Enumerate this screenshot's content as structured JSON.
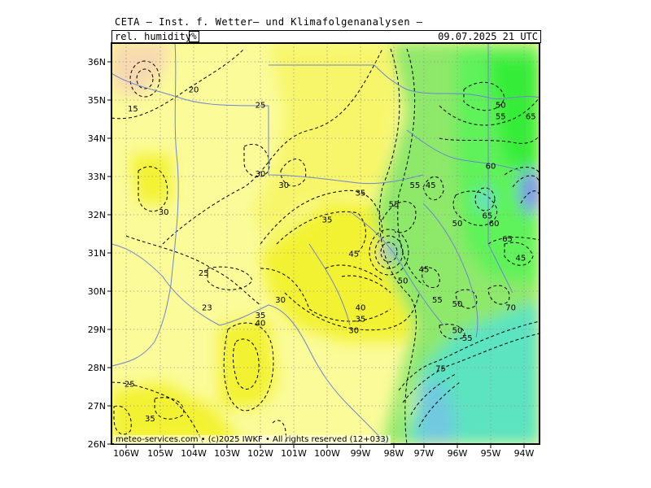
{
  "header": {
    "title": "CETA — Inst. f. Wetter— und Klimafolgenanalysen —",
    "parameter": "rel. humidity",
    "unit": "%",
    "timestamp": "09.07.2025  21 UTC"
  },
  "footer": {
    "copyright": "meteo-services.com • (c)2025 IWKF • All rights reserved (12+033)"
  },
  "axes": {
    "lat_labels": [
      "36N",
      "35N",
      "34N",
      "33N",
      "32N",
      "31N",
      "30N",
      "29N",
      "28N",
      "27N",
      "26N"
    ],
    "lon_labels": [
      "106W",
      "105W",
      "104W",
      "103W",
      "102W",
      "101W",
      "100W",
      "99W",
      "98W",
      "97W",
      "96W",
      "95W",
      "94W"
    ]
  },
  "colors": {
    "dry": "#f8d9b0",
    "low": "#fbfb9a",
    "mid": "#f3f230",
    "moist": "#8ee86a",
    "wet": "#34ed38",
    "very_wet": "#5ce3c0",
    "saturated": "#7a95ea",
    "rivers": "#6f86cf",
    "grid": "#9a9a9a"
  },
  "contour_labels": [
    {
      "text": "20",
      "lon": -104.0,
      "lat": 35.2
    },
    {
      "text": "15",
      "lon": -105.8,
      "lat": 34.7
    },
    {
      "text": "25",
      "lon": -102.0,
      "lat": 34.8
    },
    {
      "text": "30",
      "lon": -102.0,
      "lat": 33.0
    },
    {
      "text": "30",
      "lon": -101.3,
      "lat": 32.7
    },
    {
      "text": "30",
      "lon": -104.9,
      "lat": 32.0
    },
    {
      "text": "35",
      "lon": -99.0,
      "lat": 32.5
    },
    {
      "text": "35",
      "lon": -100.0,
      "lat": 31.8
    },
    {
      "text": "45",
      "lon": -99.2,
      "lat": 30.9
    },
    {
      "text": "25",
      "lon": -103.7,
      "lat": 30.4
    },
    {
      "text": "23",
      "lon": -103.6,
      "lat": 29.5
    },
    {
      "text": "30",
      "lon": -101.4,
      "lat": 29.7
    },
    {
      "text": "35",
      "lon": -102.0,
      "lat": 29.3
    },
    {
      "text": "40",
      "lon": -102.0,
      "lat": 29.1
    },
    {
      "text": "40",
      "lon": -99.0,
      "lat": 29.5
    },
    {
      "text": "35",
      "lon": -99.0,
      "lat": 29.2
    },
    {
      "text": "30",
      "lon": -99.2,
      "lat": 28.9
    },
    {
      "text": "25",
      "lon": -105.9,
      "lat": 27.5
    },
    {
      "text": "35",
      "lon": -105.3,
      "lat": 26.6
    },
    {
      "text": "50",
      "lon": -97.7,
      "lat": 30.2
    },
    {
      "text": "45",
      "lon": -97.0,
      "lat": 30.5
    },
    {
      "text": "55",
      "lon": -96.6,
      "lat": 29.7
    },
    {
      "text": "50",
      "lon": -96.0,
      "lat": 29.6
    },
    {
      "text": "55",
      "lon": -97.3,
      "lat": 32.7
    },
    {
      "text": "45",
      "lon": -96.8,
      "lat": 32.7
    },
    {
      "text": "55",
      "lon": -98.0,
      "lat": 32.2
    },
    {
      "text": "50",
      "lon": -96.0,
      "lat": 31.7
    },
    {
      "text": "60",
      "lon": -95.0,
      "lat": 33.2
    },
    {
      "text": "65",
      "lon": -95.1,
      "lat": 31.9
    },
    {
      "text": "60",
      "lon": -94.9,
      "lat": 31.7
    },
    {
      "text": "65",
      "lon": -94.5,
      "lat": 31.3
    },
    {
      "text": "45",
      "lon": -94.1,
      "lat": 30.8
    },
    {
      "text": "50",
      "lon": -94.7,
      "lat": 34.8
    },
    {
      "text": "55",
      "lon": -94.7,
      "lat": 34.5
    },
    {
      "text": "65",
      "lon": -93.8,
      "lat": 34.5
    },
    {
      "text": "70",
      "lon": -94.4,
      "lat": 29.5
    },
    {
      "text": "50",
      "lon": -96.0,
      "lat": 28.9
    },
    {
      "text": "55",
      "lon": -95.7,
      "lat": 28.7
    },
    {
      "text": "75",
      "lon": -96.5,
      "lat": 27.9
    }
  ]
}
